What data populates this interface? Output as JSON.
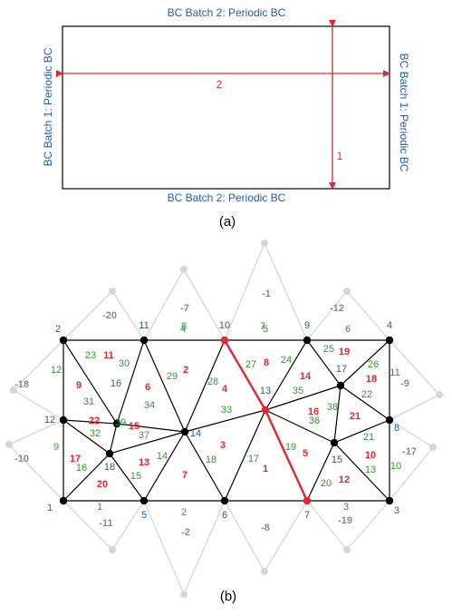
{
  "panel_a": {
    "top_label": "BC Batch 2: Periodic BC",
    "bottom_label": "BC Batch 2: Periodic BC",
    "left_label": "BC Batch 1: Periodic BC",
    "right_label": "BC Batch 1: Periodic BC",
    "arrow_horizontal_label": "2",
    "arrow_vertical_label": "1",
    "caption": "(a)"
  },
  "panel_b": {
    "caption": "(b)",
    "colors": {
      "node_id": "#1f5fa8",
      "edge_id": "#2e9a2e",
      "element_id": "#e4272b",
      "ghost_id": "#8a8a8a",
      "mesh_line": "#000000",
      "ghost_line": "#d6d6d6",
      "highlight": "#e4272b"
    },
    "node_labels": [
      "1",
      "2",
      "3",
      "4",
      "5",
      "6",
      "7",
      "8",
      "9",
      "10",
      "11",
      "12",
      "13",
      "14",
      "15",
      "16",
      "17",
      "18"
    ],
    "edge_labels": [
      "1",
      "2",
      "3",
      "4",
      "5",
      "6",
      "7",
      "8",
      "9",
      "10",
      "11",
      "12",
      "13",
      "14",
      "15",
      "16",
      "17",
      "18",
      "19",
      "20",
      "21",
      "22",
      "23",
      "24",
      "25",
      "26",
      "27",
      "28",
      "29",
      "30",
      "31",
      "32",
      "33",
      "34",
      "35",
      "36",
      "37",
      "38",
      "39"
    ],
    "element_labels": [
      "1",
      "2",
      "3",
      "4",
      "5",
      "6",
      "7",
      "8",
      "9",
      "10",
      "11",
      "12",
      "13",
      "14",
      "15",
      "16",
      "17",
      "18",
      "19",
      "20",
      "21",
      "22"
    ],
    "ghost_labels": [
      "-20",
      "-7",
      "-1",
      "-12",
      "-18",
      "-9",
      "-10",
      "-17",
      "-11",
      "-2",
      "-8",
      "-19"
    ]
  }
}
